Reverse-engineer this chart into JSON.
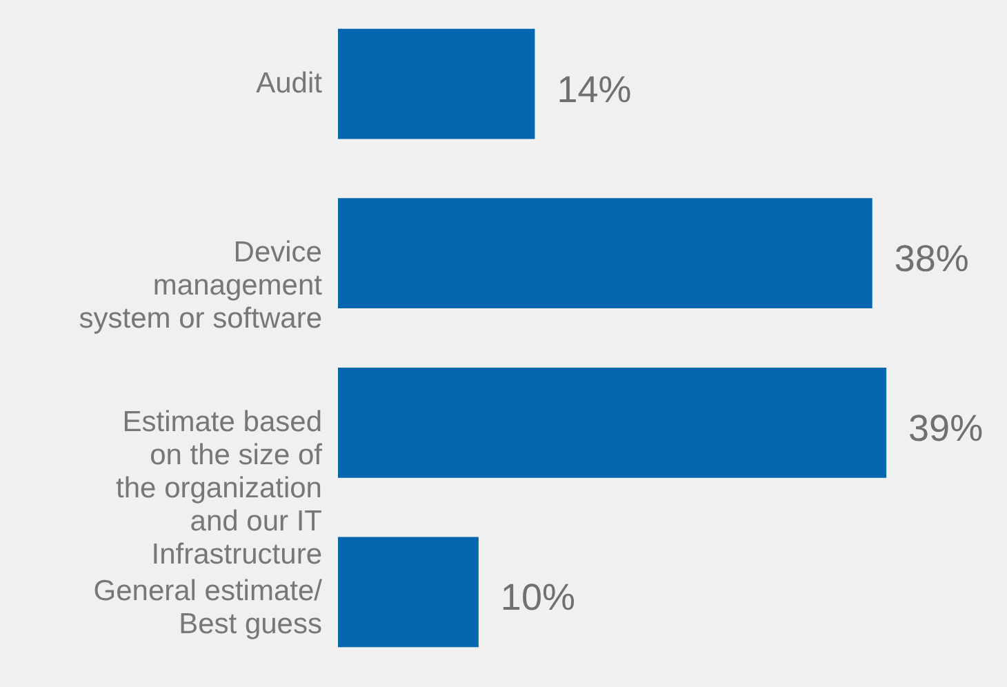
{
  "chart_data": {
    "type": "bar",
    "orientation": "horizontal",
    "categories": [
      "Audit",
      "Device\nmanagement\nsystem or software",
      "Estimate based\non the size of\nthe organization\nand our IT\nInfrastructure",
      "General estimate/\nBest guess"
    ],
    "values": [
      14,
      38,
      39,
      10
    ],
    "value_labels": [
      "14%",
      "38%",
      "39%",
      "10%"
    ],
    "color": "#0466ae"
  }
}
